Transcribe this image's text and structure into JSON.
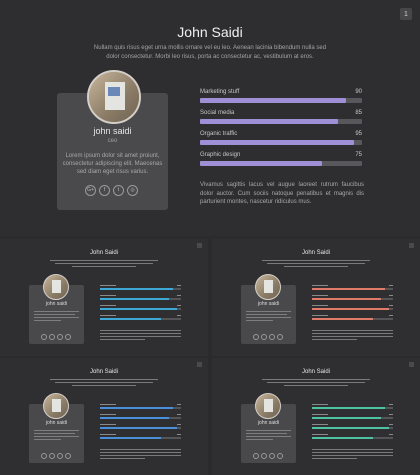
{
  "page_number": "1",
  "profile": {
    "title": "John Saidi",
    "intro": "Nullam quis risus eget urna mollis ornare vel eu leo. Aenean lacinia bibendum nulla sed dolor consectetur. Morbi leo risus, porta ac consectetur ac, vestibulum at eros.",
    "name": "john saidi",
    "role": "ceo",
    "bio": "Lorem ipsum dolor sit amet proiunt, consectetur adipiscing elit. Maecenas sed diam eget risus varius.",
    "socials": [
      {
        "icon": "google-plus-icon",
        "glyph": "G+"
      },
      {
        "icon": "facebook-icon",
        "glyph": "f"
      },
      {
        "icon": "twitter-icon",
        "glyph": "t"
      },
      {
        "icon": "instagram-icon",
        "glyph": "◎"
      }
    ],
    "skills": [
      {
        "label": "Marketing stuff",
        "value": 90
      },
      {
        "label": "Social media",
        "value": 85
      },
      {
        "label": "Organic traffic",
        "value": 95
      },
      {
        "label": "Graphic design",
        "value": 75
      }
    ],
    "outro": "Vivamus sagittis lacus vel augue laoreet rutrum faucibus dolor auctor. Cum sociis natoque penatibus et magnis dis parturient montes, nascetur ridiculus mus."
  },
  "thumbnails": [
    {
      "title": "John Saidi",
      "accent": "#3fa9d6",
      "values": [
        90,
        85,
        95,
        75
      ]
    },
    {
      "title": "John Saidi",
      "accent": "#e07b6a",
      "values": [
        90,
        85,
        95,
        75
      ]
    },
    {
      "title": "John Saidi",
      "accent": "#4a90d9",
      "values": [
        90,
        85,
        95,
        75
      ]
    },
    {
      "title": "John Saidi",
      "accent": "#4fc3a1",
      "values": [
        90,
        85,
        95,
        75
      ]
    }
  ],
  "colors": {
    "background": "#2b2b2d",
    "main_accent": "#9f8fd6",
    "track": "#58585c"
  }
}
